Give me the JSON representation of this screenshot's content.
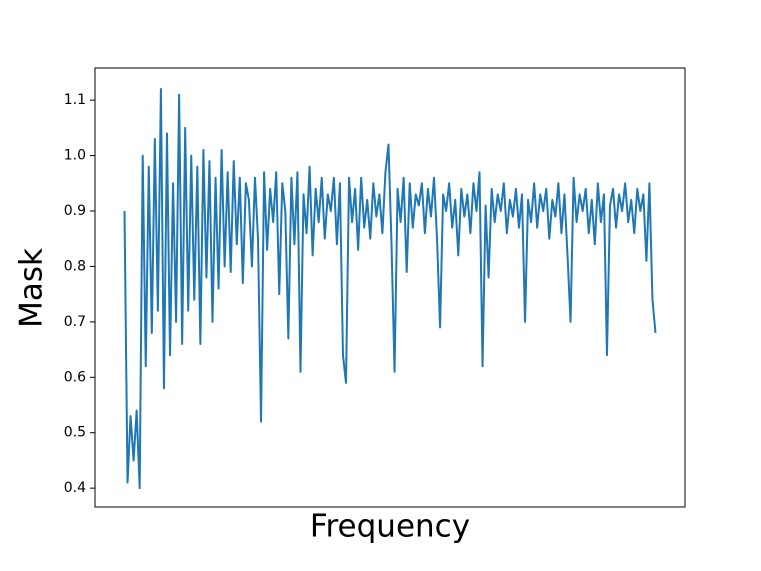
{
  "chart_data": {
    "type": "line",
    "x_label": "Frequency",
    "y_label": "Mask",
    "color": "#1f77b4",
    "values": [
      0.9,
      0.41,
      0.53,
      0.45,
      0.54,
      0.4,
      1.0,
      0.62,
      0.98,
      0.68,
      1.03,
      0.72,
      1.12,
      0.58,
      1.04,
      0.64,
      0.95,
      0.7,
      1.11,
      0.66,
      1.05,
      0.72,
      1.0,
      0.74,
      0.98,
      0.66,
      1.01,
      0.78,
      0.99,
      0.7,
      0.96,
      0.76,
      1.01,
      0.8,
      0.97,
      0.79,
      0.99,
      0.84,
      0.96,
      0.77,
      0.95,
      0.92,
      0.8,
      0.96,
      0.85,
      0.52,
      0.97,
      0.83,
      0.94,
      0.88,
      0.97,
      0.75,
      0.95,
      0.9,
      0.67,
      0.96,
      0.84,
      0.97,
      0.61,
      0.93,
      0.86,
      0.98,
      0.82,
      0.94,
      0.88,
      0.96,
      0.85,
      0.93,
      0.9,
      0.96,
      0.84,
      0.95,
      0.64,
      0.59,
      0.96,
      0.88,
      0.94,
      0.83,
      0.96,
      0.87,
      0.92,
      0.85,
      0.95,
      0.89,
      0.93,
      0.86,
      0.97,
      1.02,
      0.84,
      0.61,
      0.94,
      0.88,
      0.96,
      0.79,
      0.95,
      0.87,
      0.93,
      0.91,
      0.95,
      0.86,
      0.94,
      0.89,
      0.96,
      0.85,
      0.69,
      0.93,
      0.9,
      0.95,
      0.87,
      0.92,
      0.82,
      0.94,
      0.89,
      0.93,
      0.86,
      0.95,
      0.9,
      0.97,
      0.62,
      0.91,
      0.78,
      0.94,
      0.88,
      0.93,
      0.9,
      0.95,
      0.86,
      0.92,
      0.89,
      0.94,
      0.87,
      0.93,
      0.7,
      0.92,
      0.88,
      0.95,
      0.87,
      0.93,
      0.9,
      0.94,
      0.85,
      0.92,
      0.89,
      0.95,
      0.86,
      0.93,
      0.82,
      0.7,
      0.96,
      0.88,
      0.93,
      0.9,
      0.94,
      0.86,
      0.92,
      0.84,
      0.95,
      0.88,
      0.93,
      0.64,
      0.91,
      0.94,
      0.87,
      0.93,
      0.9,
      0.95,
      0.88,
      0.92,
      0.86,
      0.94,
      0.9,
      0.93,
      0.81,
      0.95,
      0.74,
      0.68
    ],
    "ylim": [
      0.366,
      1.158
    ],
    "yticks": [
      0.4,
      0.5,
      0.6,
      0.7,
      0.8,
      0.9,
      {
        "value": 1,
        "label": "1.0"
      },
      1.1
    ],
    "grid": false
  }
}
